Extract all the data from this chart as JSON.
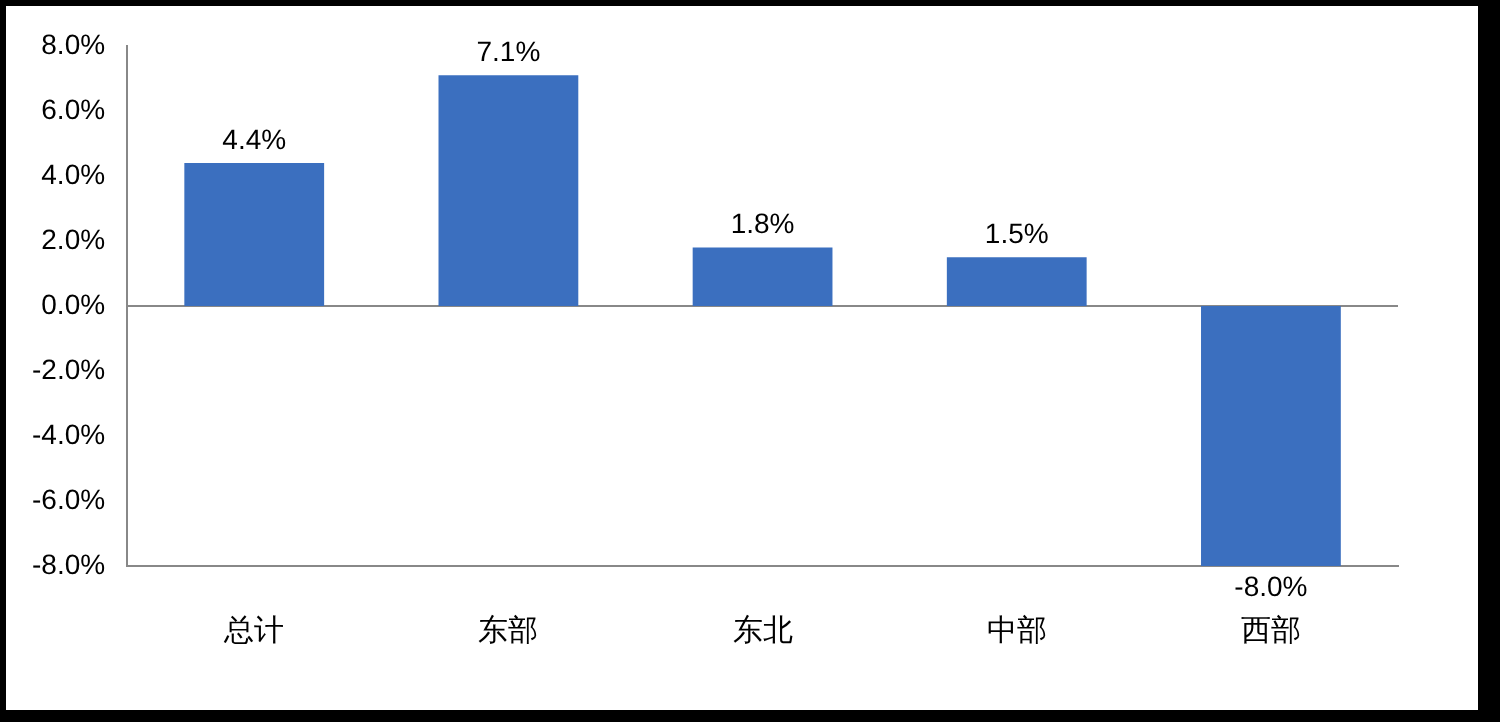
{
  "chart_data": {
    "type": "bar",
    "categories": [
      "总计",
      "东部",
      "东北",
      "中部",
      "西部"
    ],
    "values": [
      4.4,
      7.1,
      1.8,
      1.5,
      -8.0
    ],
    "value_labels": [
      "4.4%",
      "7.1%",
      "1.8%",
      "1.5%",
      "-8.0%"
    ],
    "color": "#3b6fbf",
    "ylim": [
      -8,
      8
    ],
    "yticks": [
      {
        "value": -8,
        "label": "-8.0%"
      },
      {
        "value": -6,
        "label": "-6.0%"
      },
      {
        "value": -4,
        "label": "-4.0%"
      },
      {
        "value": -2,
        "label": "-2.0%"
      },
      {
        "value": 0,
        "label": "0.0%"
      },
      {
        "value": 2,
        "label": "2.0%"
      },
      {
        "value": 4,
        "label": "4.0%"
      },
      {
        "value": 6,
        "label": "6.0%"
      },
      {
        "value": 8,
        "label": "8.0%"
      }
    ],
    "ref_lines": [
      {
        "axis": "y",
        "value": 0,
        "color": "#888888"
      }
    ],
    "grid": false,
    "legend": false
  }
}
